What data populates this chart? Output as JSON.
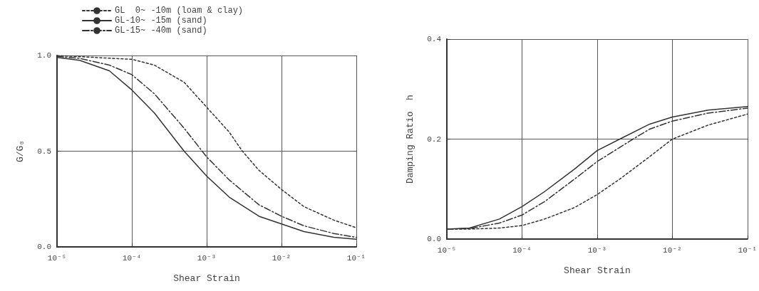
{
  "chart_data": [
    {
      "type": "line",
      "xlabel": "Shear Strain",
      "ylabel": "G/G₀",
      "log": "x",
      "grid": true,
      "legend": "top",
      "marker": "none",
      "xlim": [
        1e-05,
        0.1
      ],
      "xticks": [
        {
          "value": 1e-05,
          "label": "10⁻⁵"
        },
        {
          "value": 0.0001,
          "label": "10⁻⁴"
        },
        {
          "value": 0.001,
          "label": "10⁻³"
        },
        {
          "value": 0.01,
          "label": "10⁻²"
        },
        {
          "value": 0.1,
          "label": "10⁻¹"
        }
      ],
      "ylim": [
        0,
        1
      ],
      "yticks": [
        {
          "value": 0,
          "label": "0.0"
        },
        {
          "value": 0.5,
          "label": "0.5"
        },
        {
          "value": 1,
          "label": "1.0"
        }
      ],
      "series": [
        {
          "name": "GL  0~ -10m (loam & clay)",
          "color": "#333333",
          "line_style": "dotted",
          "x": [
            1e-05,
            0.0001,
            0.0002,
            0.0005,
            0.001,
            0.002,
            0.003,
            0.005,
            0.01,
            0.02,
            0.05,
            0.1
          ],
          "values": [
            1.0,
            0.98,
            0.95,
            0.86,
            0.73,
            0.6,
            0.5,
            0.4,
            0.3,
            0.21,
            0.14,
            0.1
          ]
        },
        {
          "name": "GL-10~ -15m (sand)",
          "color": "#333333",
          "line_style": "solid",
          "x": [
            1e-05,
            2e-05,
            5e-05,
            0.0001,
            0.0002,
            0.0005,
            0.001,
            0.002,
            0.005,
            0.01,
            0.02,
            0.05,
            0.1
          ],
          "values": [
            0.99,
            0.975,
            0.92,
            0.82,
            0.7,
            0.5,
            0.37,
            0.26,
            0.16,
            0.12,
            0.08,
            0.05,
            0.04
          ]
        },
        {
          "name": "GL-15~ -40m (sand)",
          "color": "#333333",
          "line_style": "dashed",
          "x": [
            1e-05,
            2e-05,
            5e-05,
            0.0001,
            0.0002,
            0.0005,
            0.001,
            0.002,
            0.005,
            0.01,
            0.02,
            0.05,
            0.1
          ],
          "values": [
            0.995,
            0.985,
            0.95,
            0.9,
            0.8,
            0.62,
            0.47,
            0.35,
            0.22,
            0.16,
            0.11,
            0.07,
            0.05
          ]
        }
      ]
    },
    {
      "type": "line",
      "xlabel": "Shear Strain",
      "ylabel": "Damping Ratio  h",
      "log": "x",
      "grid": true,
      "marker": "none",
      "xlim": [
        1e-05,
        0.1
      ],
      "xticks": [
        {
          "value": 1e-05,
          "label": "10⁻⁵"
        },
        {
          "value": 0.0001,
          "label": "10⁻⁴"
        },
        {
          "value": 0.001,
          "label": "10⁻³"
        },
        {
          "value": 0.01,
          "label": "10⁻²"
        },
        {
          "value": 0.1,
          "label": "10⁻¹"
        }
      ],
      "ylim": [
        0,
        0.4
      ],
      "yticks": [
        {
          "value": 0,
          "label": "0.0"
        },
        {
          "value": 0.2,
          "label": "0.2"
        },
        {
          "value": 0.4,
          "label": "0.4"
        }
      ],
      "series": [
        {
          "color": "#333333",
          "line_style": "dotted",
          "x": [
            1e-05,
            2e-05,
            5e-05,
            0.0001,
            0.0002,
            0.0005,
            0.001,
            0.002,
            0.005,
            0.01,
            0.03,
            0.1
          ],
          "values": [
            0.02,
            0.02,
            0.022,
            0.027,
            0.04,
            0.063,
            0.089,
            0.12,
            0.165,
            0.2,
            0.228,
            0.25
          ]
        },
        {
          "color": "#333333",
          "line_style": "solid",
          "x": [
            1e-05,
            2e-05,
            5e-05,
            0.0001,
            0.0002,
            0.0005,
            0.001,
            0.002,
            0.005,
            0.01,
            0.03,
            0.1
          ],
          "values": [
            0.02,
            0.022,
            0.04,
            0.065,
            0.095,
            0.14,
            0.177,
            0.2,
            0.23,
            0.244,
            0.258,
            0.265
          ]
        },
        {
          "color": "#333333",
          "line_style": "dashed",
          "x": [
            1e-05,
            2e-05,
            5e-05,
            0.0001,
            0.0002,
            0.0005,
            0.001,
            0.003,
            0.005,
            0.01,
            0.03,
            0.1
          ],
          "values": [
            0.02,
            0.021,
            0.032,
            0.048,
            0.075,
            0.12,
            0.155,
            0.2,
            0.22,
            0.236,
            0.252,
            0.262
          ]
        }
      ]
    }
  ]
}
